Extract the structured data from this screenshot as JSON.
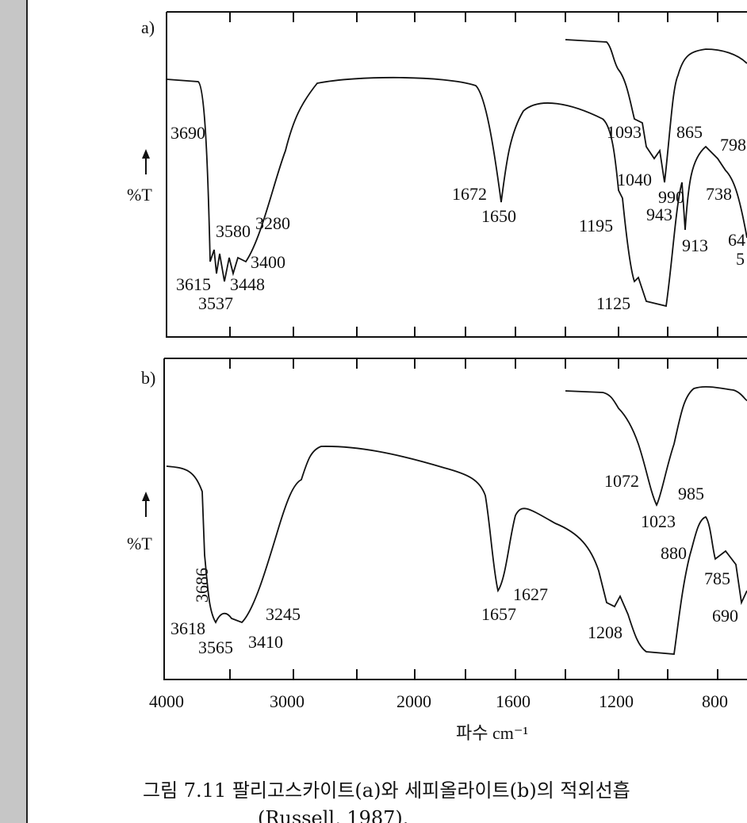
{
  "figure": {
    "panels": [
      {
        "label": "a)",
        "ylabel": "%T",
        "peaks": [
          "3690",
          "3580",
          "3280",
          "3400",
          "3615",
          "3448",
          "3537",
          "1672",
          "1650",
          "1093",
          "1040",
          "865",
          "798",
          "990",
          "738",
          "943",
          "1195",
          "913",
          "64",
          "5",
          "1125"
        ]
      },
      {
        "label": "b)",
        "ylabel": "%T",
        "peaks": [
          "1072",
          "985",
          "1023",
          "880",
          "785",
          "690",
          "3686",
          "3245",
          "3618",
          "3410",
          "3565",
          "1627",
          "1657",
          "1208"
        ]
      }
    ],
    "xticks": [
      "4000",
      "3000",
      "2000",
      "1600",
      "1200",
      "800"
    ],
    "xlabel": "파수 cm⁻¹"
  },
  "caption": {
    "line1": "그림 7.11  팔리고스카이트(a)와  세피올라이트(b)의  적외선흡",
    "line2": "(Russell, 1987)."
  }
}
